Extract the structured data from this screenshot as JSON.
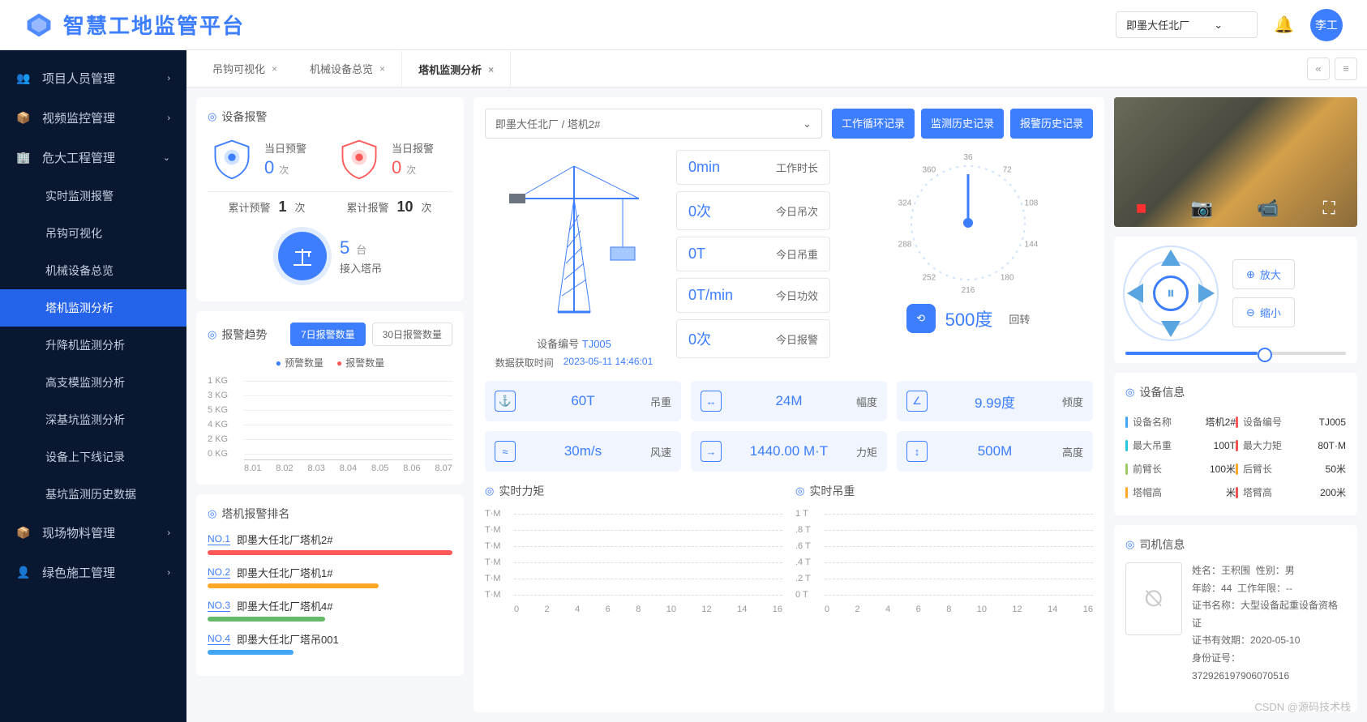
{
  "header": {
    "title": "智慧工地监管平台",
    "site": "即墨大任北厂",
    "user": "李工"
  },
  "sidebar": {
    "items": [
      {
        "icon": "👥",
        "label": "项目人员管理"
      },
      {
        "icon": "📦",
        "label": "视频监控管理"
      },
      {
        "icon": "🏢",
        "label": "危大工程管理",
        "open": true,
        "children": [
          "实时监测报警",
          "吊钩可视化",
          "机械设备总览",
          "塔机监测分析",
          "升降机监测分析",
          "高支模监测分析",
          "深基坑监测分析",
          "设备上下线记录",
          "基坑监测历史数据"
        ]
      },
      {
        "icon": "📦",
        "label": "现场物料管理"
      },
      {
        "icon": "👤",
        "label": "绿色施工管理"
      }
    ],
    "active": "塔机监测分析"
  },
  "tabs": [
    "吊钩可视化",
    "机械设备总览",
    "塔机监测分析"
  ],
  "activeTab": "塔机监测分析",
  "alarm": {
    "title": "设备报警",
    "today_warn_label": "当日预警",
    "today_warn": "0",
    "unit": "次",
    "today_alarm_label": "当日报警",
    "today_alarm": "0",
    "cum_warn_label": "累计预警",
    "cum_warn": "1",
    "cum_alarm_label": "累计报警",
    "cum_alarm": "10",
    "access_count": "5",
    "access_unit": "台",
    "access_label": "接入塔吊"
  },
  "trend": {
    "title": "报警趋势",
    "tab1": "7日报警数量",
    "tab2": "30日报警数量",
    "legend1": "预警数量",
    "legend2": "报警数量",
    "ylabels": [
      "1 KG",
      "3 KG",
      "5 KG",
      "4 KG",
      "2 KG",
      "0 KG"
    ],
    "xlabels": [
      "8.01",
      "8.02",
      "8.03",
      "8.04",
      "8.05",
      "8.06",
      "8.07"
    ]
  },
  "ranking": {
    "title": "塔机报警排名",
    "rows": [
      {
        "no": "NO.1",
        "name": "即墨大任北厂塔机2#",
        "color": "#ff5858",
        "width": "100%"
      },
      {
        "no": "NO.2",
        "name": "即墨大任北厂塔机1#",
        "color": "#ffa726",
        "width": "70%"
      },
      {
        "no": "NO.3",
        "name": "即墨大任北厂塔机4#",
        "color": "#66bb6a",
        "width": "48%"
      },
      {
        "no": "NO.4",
        "name": "即墨大任北厂塔吊001",
        "color": "#42a5f5",
        "width": "35%"
      }
    ]
  },
  "center": {
    "device_path": "即墨大任北厂 / 塔机2#",
    "btns": [
      "工作循环记录",
      "监测历史记录",
      "报警历史记录"
    ],
    "device_id_label": "设备编号",
    "device_id": "TJ005",
    "time_label": "数据获取时间",
    "time_value": "2023-05-11 14:46:01",
    "stats": [
      {
        "v": "0min",
        "k": "工作时长"
      },
      {
        "v": "0次",
        "k": "今日吊次"
      },
      {
        "v": "0T",
        "k": "今日吊重"
      },
      {
        "v": "0T/min",
        "k": "今日功效"
      },
      {
        "v": "0次",
        "k": "今日报警"
      }
    ],
    "gauge": {
      "ticks": [
        "36",
        "72",
        "108",
        "144",
        "180",
        "216",
        "252",
        "288",
        "324",
        "360"
      ],
      "value": "500度",
      "label": "回转"
    },
    "metrics": [
      {
        "icon": "⚓",
        "v": "60T",
        "k": "吊重"
      },
      {
        "icon": "↔",
        "v": "24M",
        "k": "幅度"
      },
      {
        "icon": "∠",
        "v": "9.99度",
        "k": "倾度"
      },
      {
        "icon": "≈",
        "v": "30m/s",
        "k": "风速"
      },
      {
        "icon": "→",
        "v": "1440.00 M·T",
        "k": "力矩"
      },
      {
        "icon": "↕",
        "v": "500M",
        "k": "高度"
      }
    ],
    "chart1": {
      "title": "实时力矩",
      "ylabels": [
        "T·M",
        "T·M",
        "T·M",
        "T·M",
        "T·M",
        "T·M"
      ],
      "xlabels": [
        "0",
        "2",
        "4",
        "6",
        "8",
        "10",
        "12",
        "14",
        "16"
      ]
    },
    "chart2": {
      "title": "实时吊重",
      "ylabels": [
        "1 T",
        ".8 T",
        ".6 T",
        ".4 T",
        ".2 T",
        "0 T"
      ],
      "xlabels": [
        "0",
        "2",
        "4",
        "6",
        "8",
        "10",
        "12",
        "14",
        "16"
      ]
    }
  },
  "right": {
    "zoom_in": "放大",
    "zoom_out": "缩小",
    "device_info_title": "设备信息",
    "device_info": [
      [
        {
          "c": "#42a5f5",
          "k": "设备名称",
          "v": "塔机2#"
        },
        {
          "c": "#ff5858",
          "k": "设备编号",
          "v": "TJ005"
        }
      ],
      [
        {
          "c": "#26c6da",
          "k": "最大吊重",
          "v": "100T"
        },
        {
          "c": "#ef5350",
          "k": "最大力矩",
          "v": "80T·M"
        }
      ],
      [
        {
          "c": "#9ccc65",
          "k": "前臂长",
          "v": "100米"
        },
        {
          "c": "#ffa726",
          "k": "后臂长",
          "v": "50米"
        }
      ],
      [
        {
          "c": "#ffa726",
          "k": "塔帽高",
          "v": "米"
        },
        {
          "c": "#ef5350",
          "k": "塔臂高",
          "v": "200米"
        }
      ]
    ],
    "driver_title": "司机信息",
    "driver": {
      "name": "姓名：王积围",
      "sex": "性别：男",
      "age": "年龄：44",
      "years": "工作年限：--",
      "cert": "证书名称：大型设备起重设备资格证",
      "expire": "证书有效期：2020-05-10",
      "id_label": "身份证号：",
      "id": "372926197906070516"
    }
  },
  "watermark": "CSDN @源码技术栈"
}
